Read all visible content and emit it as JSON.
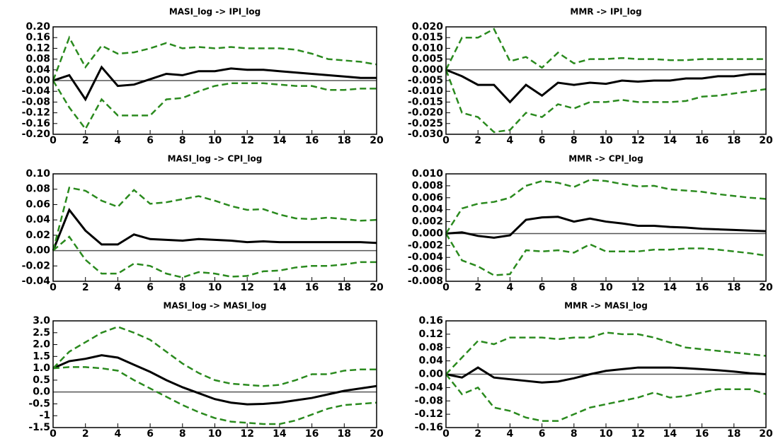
{
  "chart_data": [
    {
      "type": "line",
      "title": "MASI_log -> IPI_log",
      "x": [
        0,
        1,
        2,
        3,
        4,
        5,
        6,
        7,
        8,
        9,
        10,
        11,
        12,
        13,
        14,
        15,
        16,
        17,
        18,
        19,
        20
      ],
      "xlim": [
        0,
        20
      ],
      "xticks": [
        0,
        2,
        4,
        6,
        8,
        10,
        12,
        14,
        16,
        18,
        20
      ],
      "ylim": [
        -0.2,
        0.2
      ],
      "yticks": [
        {
          "value": -0.2,
          "label": "-0.20"
        },
        {
          "value": -0.16,
          "label": "-0.16"
        },
        {
          "value": -0.12,
          "label": "-0.12"
        },
        {
          "value": -0.08,
          "label": "-0.08"
        },
        {
          "value": -0.04,
          "label": "-0.04"
        },
        {
          "value": 0,
          "label": "0.00"
        },
        {
          "value": 0.04,
          "label": "0.04"
        },
        {
          "value": 0.08,
          "label": "0.08"
        },
        {
          "value": 0.12,
          "label": "0.12"
        },
        {
          "value": 0.16,
          "label": "0.16"
        },
        {
          "value": 0.2,
          "label": "0.20"
        }
      ],
      "series": [
        {
          "color": "#000000",
          "linestyle": "solid",
          "values": [
            0,
            0.02,
            -0.07,
            0.05,
            -0.02,
            -0.015,
            0.005,
            0.025,
            0.02,
            0.035,
            0.035,
            0.045,
            0.04,
            0.04,
            0.035,
            0.03,
            0.025,
            0.02,
            0.015,
            0.01,
            0.01
          ]
        },
        {
          "color": "#2a8a1e",
          "linestyle": "dashed",
          "values": [
            0,
            0.16,
            0.05,
            0.13,
            0.1,
            0.105,
            0.12,
            0.14,
            0.12,
            0.125,
            0.12,
            0.125,
            0.12,
            0.12,
            0.12,
            0.115,
            0.1,
            0.08,
            0.075,
            0.07,
            0.06
          ]
        },
        {
          "color": "#2a8a1e",
          "linestyle": "dashed",
          "values": [
            0,
            -0.1,
            -0.18,
            -0.07,
            -0.13,
            -0.13,
            -0.13,
            -0.07,
            -0.065,
            -0.04,
            -0.02,
            -0.01,
            -0.01,
            -0.01,
            -0.015,
            -0.02,
            -0.02,
            -0.035,
            -0.035,
            -0.03,
            -0.03
          ]
        }
      ]
    },
    {
      "type": "line",
      "title": "MMR -> IPI_log",
      "x": [
        0,
        1,
        2,
        3,
        4,
        5,
        6,
        7,
        8,
        9,
        10,
        11,
        12,
        13,
        14,
        15,
        16,
        17,
        18,
        19,
        20
      ],
      "xlim": [
        0,
        20
      ],
      "xticks": [
        0,
        2,
        4,
        6,
        8,
        10,
        12,
        14,
        16,
        18,
        20
      ],
      "ylim": [
        -0.03,
        0.02
      ],
      "yticks": [
        {
          "value": -0.03,
          "label": "-0.030"
        },
        {
          "value": -0.025,
          "label": "-0.025"
        },
        {
          "value": -0.02,
          "label": "-0.020"
        },
        {
          "value": -0.015,
          "label": "-0.015"
        },
        {
          "value": -0.01,
          "label": "-0.010"
        },
        {
          "value": -0.005,
          "label": "-0.005"
        },
        {
          "value": 0,
          "label": "0.000"
        },
        {
          "value": 0.005,
          "label": "0.005"
        },
        {
          "value": 0.01,
          "label": "0.010"
        },
        {
          "value": 0.015,
          "label": "0.015"
        },
        {
          "value": 0.02,
          "label": "0.020"
        }
      ],
      "series": [
        {
          "color": "#000000",
          "linestyle": "solid",
          "values": [
            0,
            -0.003,
            -0.007,
            -0.007,
            -0.015,
            -0.007,
            -0.012,
            -0.006,
            -0.007,
            -0.006,
            -0.0065,
            -0.005,
            -0.0055,
            -0.005,
            -0.005,
            -0.004,
            -0.004,
            -0.003,
            -0.003,
            -0.002,
            -0.002
          ]
        },
        {
          "color": "#2a8a1e",
          "linestyle": "dashed",
          "values": [
            0,
            0.015,
            0.015,
            0.019,
            0.004,
            0.006,
            0.001,
            0.008,
            0.003,
            0.005,
            0.005,
            0.0055,
            0.005,
            0.005,
            0.0045,
            0.0045,
            0.005,
            0.005,
            0.005,
            0.005,
            0.005
          ]
        },
        {
          "color": "#2a8a1e",
          "linestyle": "dashed",
          "values": [
            0,
            -0.02,
            -0.022,
            -0.029,
            -0.028,
            -0.02,
            -0.022,
            -0.016,
            -0.018,
            -0.015,
            -0.015,
            -0.014,
            -0.015,
            -0.015,
            -0.015,
            -0.0145,
            -0.0125,
            -0.012,
            -0.011,
            -0.01,
            -0.009
          ]
        }
      ]
    },
    {
      "type": "line",
      "title": "MASI_log -> CPI_log",
      "x": [
        0,
        1,
        2,
        3,
        4,
        5,
        6,
        7,
        8,
        9,
        10,
        11,
        12,
        13,
        14,
        15,
        16,
        17,
        18,
        19,
        20
      ],
      "xlim": [
        0,
        20
      ],
      "xticks": [
        0,
        2,
        4,
        6,
        8,
        10,
        12,
        14,
        16,
        18,
        20
      ],
      "ylim": [
        -0.04,
        0.1
      ],
      "yticks": [
        {
          "value": -0.04,
          "label": "-0.04"
        },
        {
          "value": -0.02,
          "label": "-0.02"
        },
        {
          "value": 0,
          "label": "0.00"
        },
        {
          "value": 0.02,
          "label": "0.02"
        },
        {
          "value": 0.04,
          "label": "0.04"
        },
        {
          "value": 0.06,
          "label": "0.06"
        },
        {
          "value": 0.08,
          "label": "0.08"
        },
        {
          "value": 0.1,
          "label": "0.10"
        }
      ],
      "series": [
        {
          "color": "#000000",
          "linestyle": "solid",
          "values": [
            0,
            0.053,
            0.026,
            0.008,
            0.008,
            0.021,
            0.015,
            0.014,
            0.013,
            0.015,
            0.014,
            0.013,
            0.011,
            0.012,
            0.011,
            0.011,
            0.011,
            0.011,
            0.011,
            0.011,
            0.01
          ]
        },
        {
          "color": "#2a8a1e",
          "linestyle": "dashed",
          "values": [
            0,
            0.082,
            0.078,
            0.065,
            0.057,
            0.079,
            0.061,
            0.063,
            0.067,
            0.071,
            0.065,
            0.058,
            0.053,
            0.054,
            0.047,
            0.042,
            0.041,
            0.043,
            0.041,
            0.039,
            0.04
          ]
        },
        {
          "color": "#2a8a1e",
          "linestyle": "dashed",
          "values": [
            0,
            0.018,
            -0.012,
            -0.03,
            -0.03,
            -0.017,
            -0.02,
            -0.03,
            -0.035,
            -0.028,
            -0.03,
            -0.034,
            -0.033,
            -0.027,
            -0.026,
            -0.022,
            -0.02,
            -0.02,
            -0.018,
            -0.015,
            -0.015
          ]
        }
      ]
    },
    {
      "type": "line",
      "title": "MMR -> CPI_log",
      "x": [
        0,
        1,
        2,
        3,
        4,
        5,
        6,
        7,
        8,
        9,
        10,
        11,
        12,
        13,
        14,
        15,
        16,
        17,
        18,
        19,
        20
      ],
      "xlim": [
        0,
        20
      ],
      "xticks": [
        0,
        2,
        4,
        6,
        8,
        10,
        12,
        14,
        16,
        18,
        20
      ],
      "ylim": [
        -0.008,
        0.01
      ],
      "yticks": [
        {
          "value": -0.008,
          "label": "-0.008"
        },
        {
          "value": -0.006,
          "label": "-0.006"
        },
        {
          "value": -0.004,
          "label": "-0.004"
        },
        {
          "value": -0.002,
          "label": "-0.002"
        },
        {
          "value": 0,
          "label": "0.000"
        },
        {
          "value": 0.002,
          "label": "0.002"
        },
        {
          "value": 0.004,
          "label": "0.004"
        },
        {
          "value": 0.006,
          "label": "0.006"
        },
        {
          "value": 0.008,
          "label": "0.008"
        },
        {
          "value": 0.01,
          "label": "0.010"
        }
      ],
      "series": [
        {
          "color": "#000000",
          "linestyle": "solid",
          "values": [
            0,
            0.0002,
            -0.0004,
            -0.0007,
            -0.0003,
            0.0023,
            0.0027,
            0.0028,
            0.002,
            0.0025,
            0.002,
            0.0017,
            0.0013,
            0.0013,
            0.0011,
            0.001,
            0.0008,
            0.0007,
            0.0006,
            0.0005,
            0.0004
          ]
        },
        {
          "color": "#2a8a1e",
          "linestyle": "dashed",
          "values": [
            0,
            0.0042,
            0.005,
            0.0053,
            0.006,
            0.008,
            0.0088,
            0.0085,
            0.0078,
            0.009,
            0.0088,
            0.0083,
            0.0079,
            0.008,
            0.0074,
            0.0072,
            0.007,
            0.0066,
            0.0063,
            0.006,
            0.0058
          ]
        },
        {
          "color": "#2a8a1e",
          "linestyle": "dashed",
          "values": [
            0,
            -0.0045,
            -0.0055,
            -0.007,
            -0.0068,
            -0.0028,
            -0.003,
            -0.0028,
            -0.0032,
            -0.0018,
            -0.003,
            -0.003,
            -0.003,
            -0.0027,
            -0.0027,
            -0.0025,
            -0.0025,
            -0.0027,
            -0.003,
            -0.0033,
            -0.0037
          ]
        }
      ]
    },
    {
      "type": "line",
      "title": "MASI_log -> MASI_log",
      "x": [
        0,
        1,
        2,
        3,
        4,
        5,
        6,
        7,
        8,
        9,
        10,
        11,
        12,
        13,
        14,
        15,
        16,
        17,
        18,
        19,
        20
      ],
      "xlim": [
        0,
        20
      ],
      "xticks": [
        0,
        2,
        4,
        6,
        8,
        10,
        12,
        14,
        16,
        18,
        20
      ],
      "ylim": [
        -1.5,
        3.0
      ],
      "yticks": [
        -1.5,
        -1.0,
        -0.5,
        {
          "value": 0,
          "label": "0.0"
        },
        0.5,
        {
          "value": 1,
          "label": "1.0"
        },
        1.5,
        {
          "value": 2,
          "label": "2.0"
        },
        2.5,
        {
          "value": 3,
          "label": "3.0"
        }
      ],
      "series": [
        {
          "color": "#000000",
          "linestyle": "solid",
          "values": [
            1.0,
            1.3,
            1.4,
            1.55,
            1.45,
            1.15,
            0.85,
            0.5,
            0.2,
            -0.05,
            -0.3,
            -0.45,
            -0.52,
            -0.5,
            -0.45,
            -0.35,
            -0.25,
            -0.1,
            0.05,
            0.15,
            0.25
          ]
        },
        {
          "color": "#2a8a1e",
          "linestyle": "dashed",
          "values": [
            1.0,
            1.7,
            2.1,
            2.5,
            2.75,
            2.5,
            2.2,
            1.7,
            1.2,
            0.8,
            0.5,
            0.35,
            0.3,
            0.25,
            0.3,
            0.5,
            0.75,
            0.75,
            0.9,
            0.95,
            0.95
          ]
        },
        {
          "color": "#2a8a1e",
          "linestyle": "dashed",
          "values": [
            1.0,
            1.05,
            1.05,
            1.0,
            0.9,
            0.5,
            0.15,
            -0.2,
            -0.55,
            -0.85,
            -1.1,
            -1.25,
            -1.3,
            -1.35,
            -1.35,
            -1.2,
            -0.95,
            -0.7,
            -0.55,
            -0.5,
            -0.45
          ]
        }
      ]
    },
    {
      "type": "line",
      "title": "MMR -> MASI_log",
      "x": [
        0,
        1,
        2,
        3,
        4,
        5,
        6,
        7,
        8,
        9,
        10,
        11,
        12,
        13,
        14,
        15,
        16,
        17,
        18,
        19,
        20
      ],
      "xlim": [
        0,
        20
      ],
      "xticks": [
        0,
        2,
        4,
        6,
        8,
        10,
        12,
        14,
        16,
        18,
        20
      ],
      "ylim": [
        -0.16,
        0.16
      ],
      "yticks": [
        {
          "value": -0.16,
          "label": "-0.16"
        },
        {
          "value": -0.12,
          "label": "-0.12"
        },
        {
          "value": -0.08,
          "label": "-0.08"
        },
        {
          "value": -0.04,
          "label": "-0.04"
        },
        {
          "value": 0,
          "label": "0.00"
        },
        {
          "value": 0.04,
          "label": "0.04"
        },
        {
          "value": 0.08,
          "label": "0.08"
        },
        {
          "value": 0.12,
          "label": "0.12"
        },
        {
          "value": 0.16,
          "label": "0.16"
        }
      ],
      "series": [
        {
          "color": "#000000",
          "linestyle": "solid",
          "values": [
            0,
            -0.01,
            0.02,
            -0.01,
            -0.015,
            -0.02,
            -0.025,
            -0.022,
            -0.012,
            0,
            0.01,
            0.015,
            0.02,
            0.02,
            0.02,
            0.018,
            0.015,
            0.012,
            0.008,
            0.003,
            0
          ]
        },
        {
          "color": "#2a8a1e",
          "linestyle": "dashed",
          "values": [
            0,
            0.05,
            0.1,
            0.09,
            0.11,
            0.11,
            0.11,
            0.105,
            0.11,
            0.11,
            0.125,
            0.12,
            0.12,
            0.11,
            0.095,
            0.08,
            0.075,
            0.07,
            0.065,
            0.06,
            0.055
          ]
        },
        {
          "color": "#2a8a1e",
          "linestyle": "dashed",
          "values": [
            0,
            -0.06,
            -0.04,
            -0.1,
            -0.11,
            -0.13,
            -0.14,
            -0.14,
            -0.12,
            -0.1,
            -0.09,
            -0.08,
            -0.07,
            -0.055,
            -0.07,
            -0.065,
            -0.055,
            -0.045,
            -0.045,
            -0.045,
            -0.06
          ]
        }
      ]
    }
  ]
}
